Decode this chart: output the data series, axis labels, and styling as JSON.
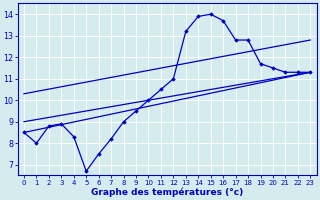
{
  "xlabel": "Graphe des températures (°c)",
  "bg_color": "#d4ecee",
  "grid_color": "#b8dde0",
  "line_color": "#0000cc",
  "hours": [
    0,
    1,
    2,
    3,
    4,
    5,
    6,
    7,
    8,
    9,
    10,
    11,
    12,
    13,
    14,
    15,
    16,
    17,
    18,
    19,
    20,
    21,
    22,
    23
  ],
  "temps": [
    8.5,
    8.0,
    8.8,
    8.9,
    8.3,
    6.7,
    7.5,
    8.2,
    9.0,
    9.5,
    10.0,
    10.5,
    11.0,
    13.2,
    13.9,
    14.0,
    13.7,
    12.8,
    12.8,
    11.7,
    11.5,
    11.3,
    11.3,
    11.3
  ],
  "line1": [
    [
      0,
      8.5
    ],
    [
      23,
      11.3
    ]
  ],
  "line2": [
    [
      0,
      9.0
    ],
    [
      23,
      11.3
    ]
  ],
  "line3": [
    [
      0,
      10.3
    ],
    [
      23,
      12.8
    ]
  ],
  "ylim": [
    6.5,
    14.5
  ],
  "xlim": [
    -0.5,
    23.5
  ],
  "yticks": [
    7,
    8,
    9,
    10,
    11,
    12,
    13,
    14
  ],
  "xticks": [
    0,
    1,
    2,
    3,
    4,
    5,
    6,
    7,
    8,
    9,
    10,
    11,
    12,
    13,
    14,
    15,
    16,
    17,
    18,
    19,
    20,
    21,
    22,
    23
  ]
}
